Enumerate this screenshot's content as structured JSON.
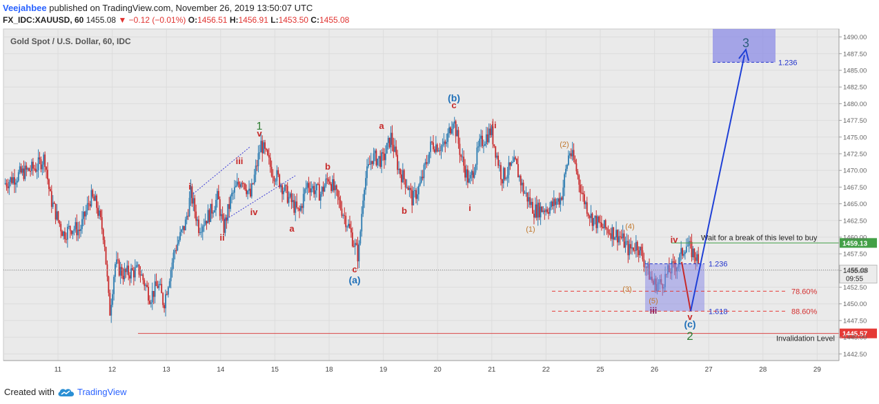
{
  "header": {
    "author": "Veejahbee",
    "published_text": "published on TradingView.com, November 26, 2019 13:50:07 UTC",
    "symbol": "FX_IDC:XAUUSD, 60",
    "last": "1455.08",
    "change": "−0.12 (−0.01%)",
    "o_label": "O:",
    "o_value": "1456.51",
    "h_label": "H:",
    "h_value": "1456.91",
    "l_label": "L:",
    "l_value": "1453.50",
    "c_label": "C:",
    "c_value": "1455.08"
  },
  "footer": {
    "created_with": "Created with",
    "brand": "TradingView",
    "logo_icon": "tradingview-cloud-icon"
  },
  "colors": {
    "up": "#2a7ab0",
    "down": "#c8282a",
    "target_box": "#8c8ce6",
    "arrow": "#1e3fd6",
    "invalidation": "#d94545",
    "buy_line": "#43a047",
    "ratio_line": "#e53935"
  },
  "chart_data": {
    "type": "candlestick",
    "title": "Gold Spot / U.S. Dollar, 60, IDC",
    "grid": true,
    "ylim": [
      1441.5,
      1491.2
    ],
    "y_ticks": [
      "1490.00",
      "1487.50",
      "1485.00",
      "1482.50",
      "1480.00",
      "1477.50",
      "1475.00",
      "1472.50",
      "1470.00",
      "1467.50",
      "1465.00",
      "1462.50",
      "1460.00",
      "1457.50",
      "1455.00",
      "1452.50",
      "1450.00",
      "1447.50",
      "1445.00",
      "1442.50"
    ],
    "x_ticks": [
      "11",
      "12",
      "13",
      "14",
      "15",
      "18",
      "19",
      "20",
      "21",
      "22",
      "25",
      "26",
      "27",
      "28",
      "29"
    ],
    "price_path": [
      [
        0,
        1468
      ],
      [
        0.3,
        1469.5
      ],
      [
        0.6,
        1470.5
      ],
      [
        0.75,
        1472
      ],
      [
        0.85,
        1466
      ],
      [
        1.0,
        1462.5
      ],
      [
        1.1,
        1460.5
      ],
      [
        1.25,
        1461.5
      ],
      [
        1.4,
        1461
      ],
      [
        1.6,
        1466
      ],
      [
        1.7,
        1465
      ],
      [
        1.85,
        1460
      ],
      [
        1.95,
        1448.5
      ],
      [
        2.05,
        1456
      ],
      [
        2.2,
        1454.5
      ],
      [
        2.5,
        1455
      ],
      [
        2.7,
        1451
      ],
      [
        2.85,
        1453
      ],
      [
        2.95,
        1450
      ],
      [
        3.15,
        1458
      ],
      [
        3.35,
        1462
      ],
      [
        3.45,
        1466.5
      ],
      [
        3.6,
        1461.5
      ],
      [
        3.8,
        1463.5
      ],
      [
        3.95,
        1466
      ],
      [
        4.05,
        1461
      ],
      [
        4.2,
        1466
      ],
      [
        4.4,
        1469
      ],
      [
        4.55,
        1466
      ],
      [
        4.75,
        1474
      ],
      [
        4.95,
        1470
      ],
      [
        5.05,
        1469
      ],
      [
        5.25,
        1466
      ],
      [
        5.45,
        1463.5
      ],
      [
        5.6,
        1468
      ],
      [
        5.85,
        1466.5
      ],
      [
        6.0,
        1469
      ],
      [
        6.2,
        1465
      ],
      [
        6.35,
        1462
      ],
      [
        6.45,
        1459.5
      ],
      [
        6.55,
        1457
      ],
      [
        6.65,
        1468
      ],
      [
        6.8,
        1472
      ],
      [
        7.0,
        1471.5
      ],
      [
        7.15,
        1475
      ],
      [
        7.3,
        1470
      ],
      [
        7.45,
        1468
      ],
      [
        7.55,
        1465.5
      ],
      [
        7.7,
        1468
      ],
      [
        7.9,
        1474
      ],
      [
        8.15,
        1473.5
      ],
      [
        8.3,
        1478
      ],
      [
        8.45,
        1472
      ],
      [
        8.6,
        1468
      ],
      [
        8.8,
        1474
      ],
      [
        9.0,
        1476
      ],
      [
        9.2,
        1469
      ],
      [
        9.45,
        1471
      ],
      [
        9.6,
        1467
      ],
      [
        9.8,
        1464
      ],
      [
        10.1,
        1464.5
      ],
      [
        10.3,
        1466
      ],
      [
        10.45,
        1473
      ],
      [
        10.55,
        1471
      ],
      [
        10.7,
        1466
      ],
      [
        10.85,
        1463
      ],
      [
        11.05,
        1461.5
      ],
      [
        11.2,
        1461
      ],
      [
        11.4,
        1460
      ],
      [
        11.55,
        1458
      ],
      [
        11.7,
        1459
      ],
      [
        11.85,
        1456
      ],
      [
        12.0,
        1453
      ],
      [
        12.15,
        1453
      ],
      [
        12.3,
        1455
      ],
      [
        12.45,
        1456
      ],
      [
        12.6,
        1459
      ],
      [
        12.7,
        1458
      ],
      [
        12.8,
        1457
      ],
      [
        12.85,
        1455.08
      ]
    ],
    "annotations": {
      "waves": [
        "1",
        "2",
        "3"
      ],
      "abc": [
        "(a)",
        "(b)",
        "(c)"
      ],
      "red_labels": [
        "i",
        "ii",
        "iii",
        "iv",
        "v",
        "a",
        "b",
        "c",
        "a",
        "b",
        "c",
        "i",
        "ii",
        "iii",
        "iv",
        "v"
      ],
      "orange_labels": [
        "(1)",
        "(2)",
        "(3)",
        "(4)",
        "(5)"
      ]
    },
    "levels": [
      {
        "name": "Invalidation Level",
        "value": 1445.57,
        "label": "1445.57"
      },
      {
        "name": "buy-level",
        "value": 1459.13,
        "label": "1459.13",
        "text": "Wait for a break of this level to buy"
      },
      {
        "name": "target",
        "value": 1486.2,
        "label": "1.236"
      },
      {
        "name": "current",
        "value": 1455.08,
        "label": "1455.08",
        "sub": "09:55"
      },
      {
        "name": "box-top",
        "value": 1456.0,
        "label": "1.236"
      },
      {
        "name": "retracement-786",
        "value": 1451.9,
        "label": "78.60%"
      },
      {
        "name": "retracement-886",
        "value": 1448.9,
        "label": "88.60%"
      },
      {
        "name": "extension",
        "value": 1448.9,
        "label": "1.618"
      }
    ]
  }
}
